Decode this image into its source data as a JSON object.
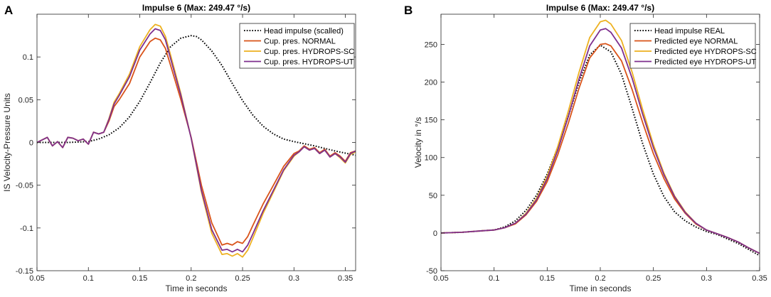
{
  "chart_data": [
    {
      "type": "line",
      "panel_label": "A",
      "title": "Impulse 6 (Max: 249.47 °/s)",
      "xlabel": "Time in seconds",
      "ylabel": "IS Velocity-Pressure Units",
      "xlim": [
        0.05,
        0.36
      ],
      "ylim": [
        -0.15,
        0.15
      ],
      "xticks": [
        0.05,
        0.1,
        0.15,
        0.2,
        0.25,
        0.3,
        0.35
      ],
      "xtick_labels": [
        "0.05",
        "0.1",
        "0.15",
        "0.2",
        "0.25",
        "0.3",
        "0.35"
      ],
      "yticks": [
        -0.15,
        -0.1,
        -0.05,
        0,
        0.05,
        0.1
      ],
      "ytick_labels": [
        "-0.15",
        "-0.1",
        "-0.05",
        "0",
        "0.05",
        "0.1"
      ],
      "legend_position": "top-right",
      "series": [
        {
          "name": "Head impulse (scalled)",
          "color": "#000000",
          "style": "dotted",
          "x": [
            0.05,
            0.08,
            0.1,
            0.11,
            0.12,
            0.13,
            0.14,
            0.15,
            0.16,
            0.17,
            0.18,
            0.19,
            0.2,
            0.205,
            0.21,
            0.22,
            0.23,
            0.24,
            0.25,
            0.26,
            0.27,
            0.28,
            0.29,
            0.3,
            0.32,
            0.34,
            0.36
          ],
          "y": [
            0,
            0,
            0.001,
            0.004,
            0.009,
            0.017,
            0.03,
            0.048,
            0.07,
            0.093,
            0.112,
            0.122,
            0.125,
            0.124,
            0.12,
            0.107,
            0.09,
            0.069,
            0.049,
            0.032,
            0.019,
            0.01,
            0.004,
            0.001,
            -0.004,
            -0.01,
            -0.015
          ]
        },
        {
          "name": "Cup. pres. NORMAL",
          "color": "#d95319",
          "style": "solid",
          "x": [
            0.05,
            0.06,
            0.065,
            0.07,
            0.075,
            0.08,
            0.085,
            0.09,
            0.095,
            0.1,
            0.105,
            0.11,
            0.115,
            0.12,
            0.125,
            0.13,
            0.14,
            0.15,
            0.16,
            0.165,
            0.17,
            0.175,
            0.18,
            0.19,
            0.2,
            0.21,
            0.22,
            0.23,
            0.235,
            0.24,
            0.245,
            0.25,
            0.255,
            0.26,
            0.27,
            0.28,
            0.29,
            0.3,
            0.305,
            0.31,
            0.315,
            0.32,
            0.325,
            0.33,
            0.335,
            0.34,
            0.345,
            0.35,
            0.355,
            0.36
          ],
          "y": [
            0,
            0.006,
            -0.004,
            0.001,
            -0.006,
            0.006,
            0.005,
            0.002,
            0.004,
            -0.002,
            0.012,
            0.01,
            0.012,
            0.025,
            0.042,
            0.05,
            0.069,
            0.1,
            0.118,
            0.122,
            0.12,
            0.11,
            0.09,
            0.05,
            0.006,
            -0.05,
            -0.094,
            -0.12,
            -0.118,
            -0.12,
            -0.116,
            -0.118,
            -0.11,
            -0.097,
            -0.072,
            -0.05,
            -0.028,
            -0.013,
            -0.01,
            -0.004,
            -0.008,
            -0.006,
            -0.012,
            -0.008,
            -0.016,
            -0.012,
            -0.016,
            -0.022,
            -0.012,
            -0.01
          ]
        },
        {
          "name": "Cup. pres. HYDROPS-SC",
          "color": "#edb120",
          "style": "solid",
          "x": [
            0.05,
            0.06,
            0.065,
            0.07,
            0.075,
            0.08,
            0.085,
            0.09,
            0.095,
            0.1,
            0.105,
            0.11,
            0.115,
            0.12,
            0.125,
            0.13,
            0.14,
            0.15,
            0.16,
            0.165,
            0.17,
            0.175,
            0.18,
            0.19,
            0.2,
            0.21,
            0.22,
            0.23,
            0.235,
            0.24,
            0.245,
            0.25,
            0.255,
            0.26,
            0.27,
            0.28,
            0.29,
            0.3,
            0.305,
            0.31,
            0.315,
            0.32,
            0.325,
            0.33,
            0.335,
            0.34,
            0.345,
            0.35,
            0.355,
            0.36
          ],
          "y": [
            0,
            0.006,
            -0.004,
            0.001,
            -0.006,
            0.006,
            0.005,
            0.002,
            0.004,
            -0.002,
            0.012,
            0.01,
            0.012,
            0.028,
            0.047,
            0.057,
            0.08,
            0.112,
            0.132,
            0.138,
            0.136,
            0.124,
            0.102,
            0.057,
            0.005,
            -0.058,
            -0.106,
            -0.131,
            -0.13,
            -0.133,
            -0.13,
            -0.134,
            -0.126,
            -0.112,
            -0.083,
            -0.058,
            -0.033,
            -0.016,
            -0.011,
            -0.005,
            -0.009,
            -0.007,
            -0.013,
            -0.009,
            -0.017,
            -0.013,
            -0.018,
            -0.024,
            -0.014,
            -0.011
          ]
        },
        {
          "name": "Cup. pres. HYDROPS-UT",
          "color": "#7e2f8e",
          "style": "solid",
          "x": [
            0.05,
            0.06,
            0.065,
            0.07,
            0.075,
            0.08,
            0.085,
            0.09,
            0.095,
            0.1,
            0.105,
            0.11,
            0.115,
            0.12,
            0.125,
            0.13,
            0.14,
            0.15,
            0.16,
            0.165,
            0.17,
            0.175,
            0.18,
            0.19,
            0.2,
            0.21,
            0.22,
            0.23,
            0.235,
            0.24,
            0.245,
            0.25,
            0.255,
            0.26,
            0.27,
            0.28,
            0.29,
            0.3,
            0.305,
            0.31,
            0.315,
            0.32,
            0.325,
            0.33,
            0.335,
            0.34,
            0.345,
            0.35,
            0.355,
            0.36
          ],
          "y": [
            0,
            0.006,
            -0.004,
            0.001,
            -0.006,
            0.006,
            0.005,
            0.002,
            0.004,
            -0.002,
            0.012,
            0.01,
            0.012,
            0.027,
            0.045,
            0.055,
            0.077,
            0.108,
            0.127,
            0.133,
            0.131,
            0.12,
            0.098,
            0.055,
            0.005,
            -0.056,
            -0.102,
            -0.126,
            -0.125,
            -0.128,
            -0.125,
            -0.128,
            -0.12,
            -0.107,
            -0.08,
            -0.056,
            -0.032,
            -0.015,
            -0.011,
            -0.005,
            -0.009,
            -0.007,
            -0.013,
            -0.009,
            -0.017,
            -0.013,
            -0.017,
            -0.023,
            -0.013,
            -0.01
          ]
        }
      ]
    },
    {
      "type": "line",
      "panel_label": "B",
      "title": "Impulse 6 (Max: 249.47 °/s)",
      "xlabel": "Time in seconds",
      "ylabel": "Velocity in °/s",
      "xlim": [
        0.05,
        0.35
      ],
      "ylim": [
        -50,
        290
      ],
      "xticks": [
        0.05,
        0.1,
        0.15,
        0.2,
        0.25,
        0.3,
        0.35
      ],
      "xtick_labels": [
        "0.05",
        "0.1",
        "0.15",
        "0.2",
        "0.25",
        "0.3",
        "0.35"
      ],
      "yticks": [
        -50,
        0,
        50,
        100,
        150,
        200,
        250
      ],
      "ytick_labels": [
        "-50",
        "0",
        "50",
        "100",
        "150",
        "200",
        "250"
      ],
      "legend_position": "top-right",
      "series": [
        {
          "name": "Head impulse REAL",
          "color": "#000000",
          "style": "dotted",
          "x": [
            0.05,
            0.07,
            0.09,
            0.1,
            0.11,
            0.12,
            0.13,
            0.14,
            0.15,
            0.16,
            0.17,
            0.18,
            0.19,
            0.2,
            0.21,
            0.22,
            0.23,
            0.24,
            0.25,
            0.26,
            0.27,
            0.28,
            0.29,
            0.3,
            0.31,
            0.32,
            0.33,
            0.34,
            0.35
          ],
          "y": [
            0,
            1,
            3,
            4,
            8,
            16,
            30,
            50,
            78,
            114,
            155,
            200,
            236,
            249,
            240,
            210,
            165,
            118,
            78,
            48,
            28,
            16,
            8,
            2,
            -2,
            -8,
            -14,
            -22,
            -30
          ]
        },
        {
          "name": "Predicted eye NORMAL",
          "color": "#d95319",
          "style": "solid",
          "x": [
            0.05,
            0.07,
            0.09,
            0.1,
            0.11,
            0.12,
            0.13,
            0.14,
            0.15,
            0.16,
            0.17,
            0.18,
            0.19,
            0.2,
            0.205,
            0.21,
            0.22,
            0.23,
            0.24,
            0.25,
            0.26,
            0.27,
            0.28,
            0.29,
            0.3,
            0.31,
            0.32,
            0.33,
            0.34,
            0.35
          ],
          "y": [
            0,
            1,
            3,
            4,
            7,
            12,
            24,
            42,
            68,
            104,
            146,
            192,
            232,
            250,
            251,
            248,
            228,
            190,
            146,
            105,
            72,
            45,
            26,
            12,
            4,
            -1,
            -6,
            -12,
            -20,
            -27
          ]
        },
        {
          "name": "Predicted eye HYDROPS-SC",
          "color": "#edb120",
          "style": "solid",
          "x": [
            0.05,
            0.07,
            0.09,
            0.1,
            0.11,
            0.12,
            0.13,
            0.14,
            0.15,
            0.16,
            0.17,
            0.18,
            0.19,
            0.2,
            0.205,
            0.21,
            0.22,
            0.23,
            0.24,
            0.25,
            0.26,
            0.27,
            0.28,
            0.29,
            0.3,
            0.31,
            0.32,
            0.33,
            0.34,
            0.35
          ],
          "y": [
            0,
            1,
            3,
            4,
            7,
            13,
            26,
            46,
            75,
            115,
            162,
            213,
            259,
            280,
            282,
            277,
            255,
            213,
            163,
            117,
            79,
            49,
            28,
            13,
            4,
            -1,
            -6,
            -12,
            -20,
            -27
          ]
        },
        {
          "name": "Predicted eye HYDROPS-UT",
          "color": "#7e2f8e",
          "style": "solid",
          "x": [
            0.05,
            0.07,
            0.09,
            0.1,
            0.11,
            0.12,
            0.13,
            0.14,
            0.15,
            0.16,
            0.17,
            0.18,
            0.19,
            0.2,
            0.205,
            0.21,
            0.22,
            0.23,
            0.24,
            0.25,
            0.26,
            0.27,
            0.28,
            0.29,
            0.3,
            0.31,
            0.32,
            0.33,
            0.34,
            0.35
          ],
          "y": [
            0,
            1,
            3,
            4,
            7,
            13,
            25,
            44,
            72,
            110,
            155,
            204,
            248,
            269,
            271,
            266,
            245,
            205,
            157,
            113,
            77,
            48,
            27,
            13,
            4,
            -1,
            -6,
            -12,
            -20,
            -27
          ]
        }
      ]
    }
  ]
}
